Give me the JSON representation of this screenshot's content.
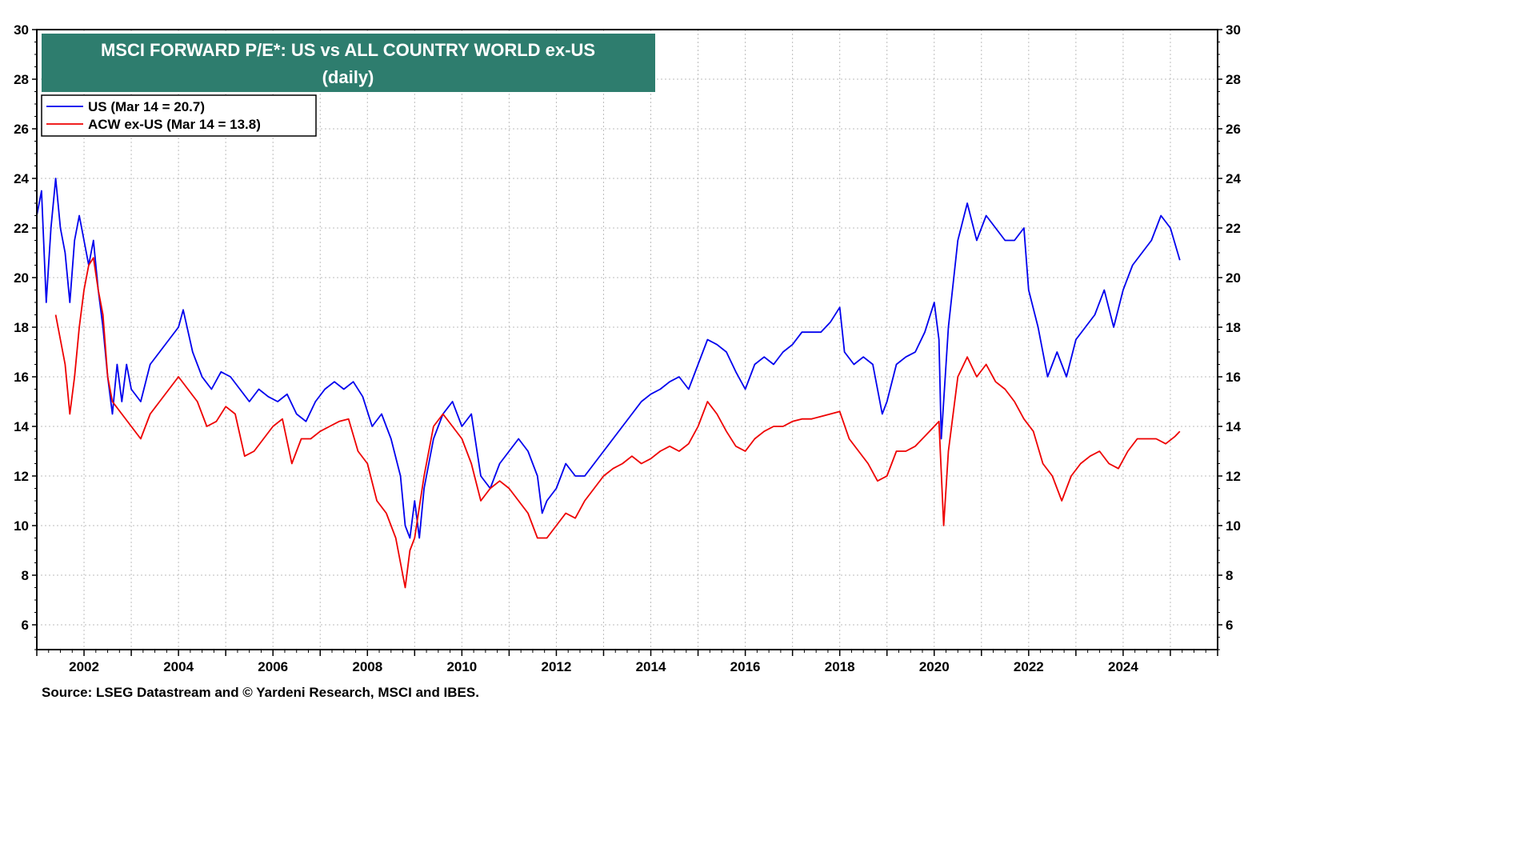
{
  "chart_data": {
    "type": "line",
    "title": "MSCI FORWARD P/E*: US vs ALL COUNTRY WORLD ex-US",
    "subtitle": "(daily)",
    "source": "Source: LSEG Datastream and © Yardeni Research, MSCI and IBES.",
    "xlim": [
      2001.0,
      2026.0
    ],
    "ylim": [
      5,
      30
    ],
    "y_ticks": [
      6,
      8,
      10,
      12,
      14,
      16,
      18,
      20,
      22,
      24,
      26,
      28,
      30
    ],
    "x_ticks": [
      2002,
      2004,
      2006,
      2008,
      2010,
      2012,
      2014,
      2016,
      2018,
      2020,
      2022,
      2024
    ],
    "grid": true,
    "dual_y_axis": true,
    "legend_position": "top-left",
    "title_box_color": "#2e7d6e",
    "series": [
      {
        "name": "US (Mar 14 = 20.7)",
        "color": "#0000ee",
        "points": [
          [
            2001.0,
            22.5
          ],
          [
            2001.1,
            23.5
          ],
          [
            2001.2,
            19.0
          ],
          [
            2001.3,
            22.0
          ],
          [
            2001.4,
            24.0
          ],
          [
            2001.5,
            22.0
          ],
          [
            2001.6,
            21.0
          ],
          [
            2001.7,
            19.0
          ],
          [
            2001.8,
            21.5
          ],
          [
            2001.9,
            22.5
          ],
          [
            2002.0,
            21.5
          ],
          [
            2002.1,
            20.5
          ],
          [
            2002.2,
            21.5
          ],
          [
            2002.3,
            19.5
          ],
          [
            2002.4,
            18.0
          ],
          [
            2002.5,
            16.0
          ],
          [
            2002.6,
            14.5
          ],
          [
            2002.7,
            16.5
          ],
          [
            2002.8,
            15.0
          ],
          [
            2002.9,
            16.5
          ],
          [
            2003.0,
            15.5
          ],
          [
            2003.2,
            15.0
          ],
          [
            2003.4,
            16.5
          ],
          [
            2003.6,
            17.0
          ],
          [
            2003.8,
            17.5
          ],
          [
            2004.0,
            18.0
          ],
          [
            2004.1,
            18.7
          ],
          [
            2004.3,
            17.0
          ],
          [
            2004.5,
            16.0
          ],
          [
            2004.7,
            15.5
          ],
          [
            2004.9,
            16.2
          ],
          [
            2005.1,
            16.0
          ],
          [
            2005.3,
            15.5
          ],
          [
            2005.5,
            15.0
          ],
          [
            2005.7,
            15.5
          ],
          [
            2005.9,
            15.2
          ],
          [
            2006.1,
            15.0
          ],
          [
            2006.3,
            15.3
          ],
          [
            2006.5,
            14.5
          ],
          [
            2006.7,
            14.2
          ],
          [
            2006.9,
            15.0
          ],
          [
            2007.1,
            15.5
          ],
          [
            2007.3,
            15.8
          ],
          [
            2007.5,
            15.5
          ],
          [
            2007.7,
            15.8
          ],
          [
            2007.9,
            15.2
          ],
          [
            2008.1,
            14.0
          ],
          [
            2008.3,
            14.5
          ],
          [
            2008.5,
            13.5
          ],
          [
            2008.7,
            12.0
          ],
          [
            2008.8,
            10.0
          ],
          [
            2008.9,
            9.5
          ],
          [
            2009.0,
            11.0
          ],
          [
            2009.1,
            9.5
          ],
          [
            2009.2,
            11.5
          ],
          [
            2009.4,
            13.5
          ],
          [
            2009.6,
            14.5
          ],
          [
            2009.8,
            15.0
          ],
          [
            2010.0,
            14.0
          ],
          [
            2010.2,
            14.5
          ],
          [
            2010.4,
            12.0
          ],
          [
            2010.6,
            11.5
          ],
          [
            2010.8,
            12.5
          ],
          [
            2011.0,
            13.0
          ],
          [
            2011.2,
            13.5
          ],
          [
            2011.4,
            13.0
          ],
          [
            2011.6,
            12.0
          ],
          [
            2011.7,
            10.5
          ],
          [
            2011.8,
            11.0
          ],
          [
            2012.0,
            11.5
          ],
          [
            2012.2,
            12.5
          ],
          [
            2012.4,
            12.0
          ],
          [
            2012.6,
            12.0
          ],
          [
            2012.8,
            12.5
          ],
          [
            2013.0,
            13.0
          ],
          [
            2013.2,
            13.5
          ],
          [
            2013.4,
            14.0
          ],
          [
            2013.6,
            14.5
          ],
          [
            2013.8,
            15.0
          ],
          [
            2014.0,
            15.3
          ],
          [
            2014.2,
            15.5
          ],
          [
            2014.4,
            15.8
          ],
          [
            2014.6,
            16.0
          ],
          [
            2014.8,
            15.5
          ],
          [
            2015.0,
            16.5
          ],
          [
            2015.2,
            17.5
          ],
          [
            2015.4,
            17.3
          ],
          [
            2015.6,
            17.0
          ],
          [
            2015.8,
            16.2
          ],
          [
            2016.0,
            15.5
          ],
          [
            2016.2,
            16.5
          ],
          [
            2016.4,
            16.8
          ],
          [
            2016.6,
            16.5
          ],
          [
            2016.8,
            17.0
          ],
          [
            2017.0,
            17.3
          ],
          [
            2017.2,
            17.8
          ],
          [
            2017.4,
            17.8
          ],
          [
            2017.6,
            17.8
          ],
          [
            2017.8,
            18.2
          ],
          [
            2018.0,
            18.8
          ],
          [
            2018.1,
            17.0
          ],
          [
            2018.3,
            16.5
          ],
          [
            2018.5,
            16.8
          ],
          [
            2018.7,
            16.5
          ],
          [
            2018.9,
            14.5
          ],
          [
            2019.0,
            15.0
          ],
          [
            2019.2,
            16.5
          ],
          [
            2019.4,
            16.8
          ],
          [
            2019.6,
            17.0
          ],
          [
            2019.8,
            17.8
          ],
          [
            2020.0,
            19.0
          ],
          [
            2020.1,
            17.5
          ],
          [
            2020.15,
            13.5
          ],
          [
            2020.3,
            18.0
          ],
          [
            2020.5,
            21.5
          ],
          [
            2020.7,
            23.0
          ],
          [
            2020.9,
            21.5
          ],
          [
            2021.1,
            22.5
          ],
          [
            2021.3,
            22.0
          ],
          [
            2021.5,
            21.5
          ],
          [
            2021.7,
            21.5
          ],
          [
            2021.9,
            22.0
          ],
          [
            2022.0,
            19.5
          ],
          [
            2022.2,
            18.0
          ],
          [
            2022.4,
            16.0
          ],
          [
            2022.6,
            17.0
          ],
          [
            2022.8,
            16.0
          ],
          [
            2023.0,
            17.5
          ],
          [
            2023.2,
            18.0
          ],
          [
            2023.4,
            18.5
          ],
          [
            2023.6,
            19.5
          ],
          [
            2023.8,
            18.0
          ],
          [
            2024.0,
            19.5
          ],
          [
            2024.2,
            20.5
          ],
          [
            2024.4,
            21.0
          ],
          [
            2024.6,
            21.5
          ],
          [
            2024.8,
            22.5
          ],
          [
            2025.0,
            22.0
          ],
          [
            2025.2,
            20.7
          ]
        ]
      },
      {
        "name": "ACW ex-US (Mar 14 = 13.8)",
        "color": "#ee0000",
        "points": [
          [
            2001.4,
            18.5
          ],
          [
            2001.5,
            17.5
          ],
          [
            2001.6,
            16.5
          ],
          [
            2001.7,
            14.5
          ],
          [
            2001.8,
            16.0
          ],
          [
            2001.9,
            18.0
          ],
          [
            2002.0,
            19.5
          ],
          [
            2002.1,
            20.5
          ],
          [
            2002.2,
            20.8
          ],
          [
            2002.3,
            19.5
          ],
          [
            2002.4,
            18.5
          ],
          [
            2002.5,
            16.0
          ],
          [
            2002.6,
            15.0
          ],
          [
            2002.8,
            14.5
          ],
          [
            2003.0,
            14.0
          ],
          [
            2003.2,
            13.5
          ],
          [
            2003.4,
            14.5
          ],
          [
            2003.6,
            15.0
          ],
          [
            2003.8,
            15.5
          ],
          [
            2004.0,
            16.0
          ],
          [
            2004.2,
            15.5
          ],
          [
            2004.4,
            15.0
          ],
          [
            2004.6,
            14.0
          ],
          [
            2004.8,
            14.2
          ],
          [
            2005.0,
            14.8
          ],
          [
            2005.2,
            14.5
          ],
          [
            2005.4,
            12.8
          ],
          [
            2005.6,
            13.0
          ],
          [
            2005.8,
            13.5
          ],
          [
            2006.0,
            14.0
          ],
          [
            2006.2,
            14.3
          ],
          [
            2006.4,
            12.5
          ],
          [
            2006.6,
            13.5
          ],
          [
            2006.8,
            13.5
          ],
          [
            2007.0,
            13.8
          ],
          [
            2007.2,
            14.0
          ],
          [
            2007.4,
            14.2
          ],
          [
            2007.6,
            14.3
          ],
          [
            2007.8,
            13.0
          ],
          [
            2008.0,
            12.5
          ],
          [
            2008.2,
            11.0
          ],
          [
            2008.4,
            10.5
          ],
          [
            2008.6,
            9.5
          ],
          [
            2008.8,
            7.5
          ],
          [
            2008.9,
            9.0
          ],
          [
            2009.0,
            9.5
          ],
          [
            2009.2,
            12.0
          ],
          [
            2009.4,
            14.0
          ],
          [
            2009.6,
            14.5
          ],
          [
            2009.8,
            14.0
          ],
          [
            2010.0,
            13.5
          ],
          [
            2010.2,
            12.5
          ],
          [
            2010.4,
            11.0
          ],
          [
            2010.6,
            11.5
          ],
          [
            2010.8,
            11.8
          ],
          [
            2011.0,
            11.5
          ],
          [
            2011.2,
            11.0
          ],
          [
            2011.4,
            10.5
          ],
          [
            2011.6,
            9.5
          ],
          [
            2011.8,
            9.5
          ],
          [
            2012.0,
            10.0
          ],
          [
            2012.2,
            10.5
          ],
          [
            2012.4,
            10.3
          ],
          [
            2012.6,
            11.0
          ],
          [
            2012.8,
            11.5
          ],
          [
            2013.0,
            12.0
          ],
          [
            2013.2,
            12.3
          ],
          [
            2013.4,
            12.5
          ],
          [
            2013.6,
            12.8
          ],
          [
            2013.8,
            12.5
          ],
          [
            2014.0,
            12.7
          ],
          [
            2014.2,
            13.0
          ],
          [
            2014.4,
            13.2
          ],
          [
            2014.6,
            13.0
          ],
          [
            2014.8,
            13.3
          ],
          [
            2015.0,
            14.0
          ],
          [
            2015.2,
            15.0
          ],
          [
            2015.4,
            14.5
          ],
          [
            2015.6,
            13.8
          ],
          [
            2015.8,
            13.2
          ],
          [
            2016.0,
            13.0
          ],
          [
            2016.2,
            13.5
          ],
          [
            2016.4,
            13.8
          ],
          [
            2016.6,
            14.0
          ],
          [
            2016.8,
            14.0
          ],
          [
            2017.0,
            14.2
          ],
          [
            2017.2,
            14.3
          ],
          [
            2017.4,
            14.3
          ],
          [
            2017.6,
            14.4
          ],
          [
            2017.8,
            14.5
          ],
          [
            2018.0,
            14.6
          ],
          [
            2018.2,
            13.5
          ],
          [
            2018.4,
            13.0
          ],
          [
            2018.6,
            12.5
          ],
          [
            2018.8,
            11.8
          ],
          [
            2019.0,
            12.0
          ],
          [
            2019.2,
            13.0
          ],
          [
            2019.4,
            13.0
          ],
          [
            2019.6,
            13.2
          ],
          [
            2019.8,
            13.6
          ],
          [
            2020.0,
            14.0
          ],
          [
            2020.1,
            14.2
          ],
          [
            2020.2,
            10.0
          ],
          [
            2020.3,
            13.0
          ],
          [
            2020.5,
            16.0
          ],
          [
            2020.7,
            16.8
          ],
          [
            2020.9,
            16.0
          ],
          [
            2021.1,
            16.5
          ],
          [
            2021.3,
            15.8
          ],
          [
            2021.5,
            15.5
          ],
          [
            2021.7,
            15.0
          ],
          [
            2021.9,
            14.3
          ],
          [
            2022.1,
            13.8
          ],
          [
            2022.3,
            12.5
          ],
          [
            2022.5,
            12.0
          ],
          [
            2022.7,
            11.0
          ],
          [
            2022.9,
            12.0
          ],
          [
            2023.1,
            12.5
          ],
          [
            2023.3,
            12.8
          ],
          [
            2023.5,
            13.0
          ],
          [
            2023.7,
            12.5
          ],
          [
            2023.9,
            12.3
          ],
          [
            2024.1,
            13.0
          ],
          [
            2024.3,
            13.5
          ],
          [
            2024.5,
            13.5
          ],
          [
            2024.7,
            13.5
          ],
          [
            2024.9,
            13.3
          ],
          [
            2025.1,
            13.6
          ],
          [
            2025.2,
            13.8
          ]
        ]
      }
    ]
  }
}
